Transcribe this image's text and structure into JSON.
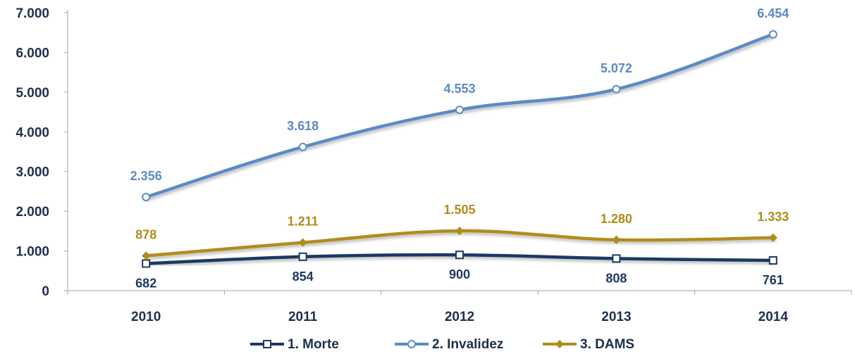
{
  "chart_data": {
    "type": "line",
    "categories": [
      "2010",
      "2011",
      "2012",
      "2013",
      "2014"
    ],
    "ylim": [
      0,
      7000
    ],
    "yticks": [
      {
        "value": 0,
        "label": "0"
      },
      {
        "value": 1000,
        "label": "1.000"
      },
      {
        "value": 2000,
        "label": "2.000"
      },
      {
        "value": 3000,
        "label": "3.000"
      },
      {
        "value": 4000,
        "label": "4.000"
      },
      {
        "value": 5000,
        "label": "5.000"
      },
      {
        "value": 6000,
        "label": "6.000"
      },
      {
        "value": 7000,
        "label": "7.000"
      }
    ],
    "grid": false,
    "legend": "bottom-center",
    "series": [
      {
        "name": "1. Morte",
        "color": "#1f3864",
        "marker": "square",
        "label_position": "below",
        "values": [
          682,
          854,
          900,
          808,
          761
        ],
        "labels": [
          "682",
          "854",
          "900",
          "808",
          "761"
        ]
      },
      {
        "name": "2. Invalidez",
        "color": "#5b8ac6",
        "marker": "circle",
        "label_position": "above",
        "values": [
          2356,
          3618,
          4553,
          5072,
          6454
        ],
        "labels": [
          "2.356",
          "3.618",
          "4.553",
          "5.072",
          "6.454"
        ]
      },
      {
        "name": "3. DAMS",
        "color": "#b08d1a",
        "marker": "diamond",
        "label_position": "above",
        "values": [
          878,
          1211,
          1505,
          1280,
          1333
        ],
        "labels": [
          "878",
          "1.211",
          "1.505",
          "1.280",
          "1.333"
        ]
      }
    ]
  }
}
